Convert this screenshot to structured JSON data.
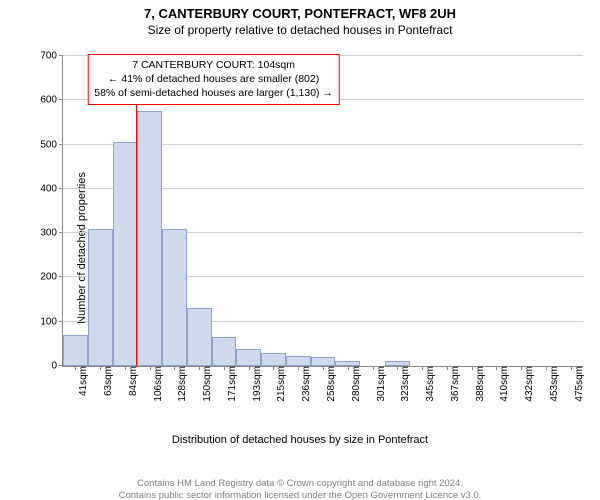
{
  "title": "7, CANTERBURY COURT, PONTEFRACT, WF8 2UH",
  "subtitle": "Size of property relative to detached houses in Pontefract",
  "ylabel": "Number of detached properties",
  "xlabel": "Distribution of detached houses by size in Pontefract",
  "chart": {
    "type": "histogram",
    "ylim": [
      0,
      700
    ],
    "ytick_step": 100,
    "background_color": "#ffffff",
    "grid_color": "#d0d0d0",
    "axis_color": "#888888",
    "bar_fill": "#cfd9ee",
    "bar_stroke": "#8fa3cf",
    "bar_width_ratio": 1.0,
    "bins": [
      {
        "label": "41sqm",
        "value": 70
      },
      {
        "label": "63sqm",
        "value": 310
      },
      {
        "label": "84sqm",
        "value": 505
      },
      {
        "label": "106sqm",
        "value": 575
      },
      {
        "label": "128sqm",
        "value": 310
      },
      {
        "label": "150sqm",
        "value": 130
      },
      {
        "label": "171sqm",
        "value": 65
      },
      {
        "label": "193sqm",
        "value": 38
      },
      {
        "label": "215sqm",
        "value": 30
      },
      {
        "label": "236sqm",
        "value": 22
      },
      {
        "label": "258sqm",
        "value": 20
      },
      {
        "label": "280sqm",
        "value": 12
      },
      {
        "label": "301sqm",
        "value": 0
      },
      {
        "label": "323sqm",
        "value": 12
      },
      {
        "label": "345sqm",
        "value": 0
      },
      {
        "label": "367sqm",
        "value": 0
      },
      {
        "label": "388sqm",
        "value": 0
      },
      {
        "label": "410sqm",
        "value": 0
      },
      {
        "label": "432sqm",
        "value": 0
      },
      {
        "label": "453sqm",
        "value": 0
      },
      {
        "label": "475sqm",
        "value": 0
      }
    ],
    "marker": {
      "bin_position": 2.95,
      "color": "#ff0000"
    },
    "annotation": {
      "line1": "7 CANTERBURY COURT: 104sqm",
      "line2": "← 41% of detached houses are smaller (802)",
      "line3": "58% of semi-detached houses are larger (1,130) →",
      "border_color": "#ff0000",
      "pos_bin": 2.0,
      "y_value": 640
    }
  },
  "footer": {
    "line1": "Contains HM Land Registry data © Crown copyright and database right 2024.",
    "line2": "Contains public sector information licensed under the Open Government Licence v3.0."
  }
}
